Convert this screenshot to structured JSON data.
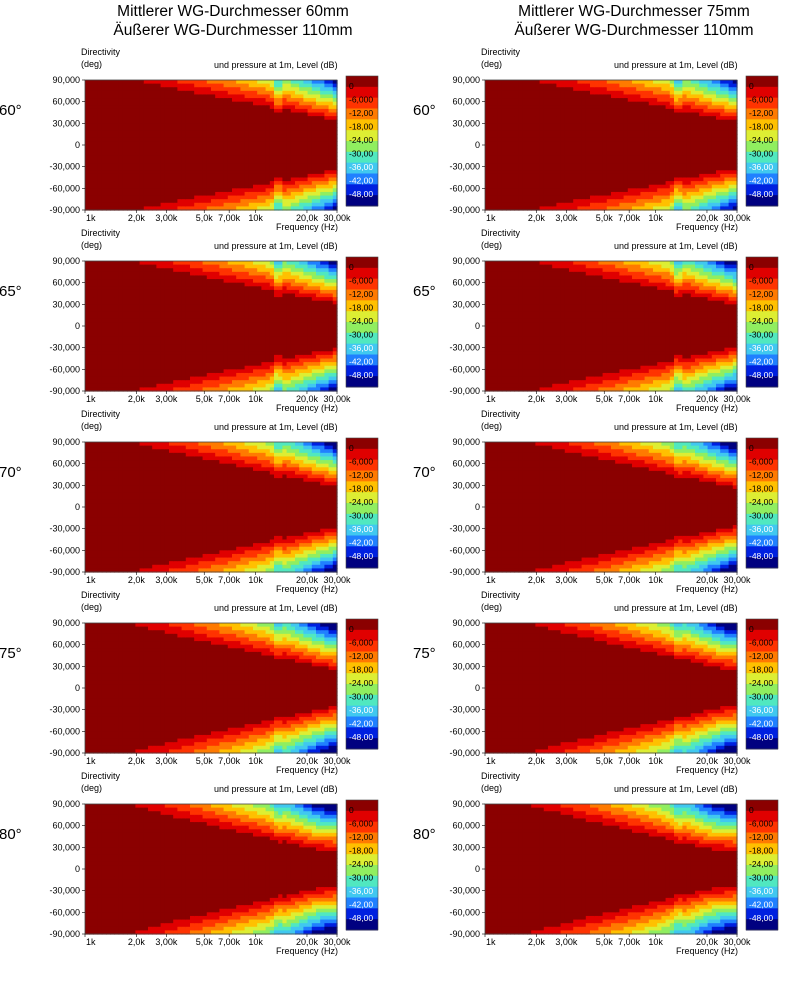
{
  "columns": [
    {
      "title_line1": "Mittlerer WG-Durchmesser 60mm",
      "title_line2": "Äußerer WG-Durchmesser 110mm",
      "variant": 0
    },
    {
      "title_line1": "Mittlerer WG-Durchmesser 75mm",
      "title_line2": "Äußerer WG-Durchmesser 110mm",
      "variant": 1
    }
  ],
  "rows": [
    {
      "angle_label": "60°",
      "angle": 60
    },
    {
      "angle_label": "65°",
      "angle": 65
    },
    {
      "angle_label": "70°",
      "angle": 70
    },
    {
      "angle_label": "75°",
      "angle": 75
    },
    {
      "angle_label": "80°",
      "angle": 80
    }
  ],
  "chart_data": {
    "type": "heatmap",
    "ylabel_line1": "Directivity",
    "ylabel_line2": "(deg)",
    "value_label": "und pressure at 1m, Level  (dB)",
    "xlabel": "Frequency  (Hz)",
    "x_scale": "log",
    "xlim": [
      1000,
      30000
    ],
    "ylim": [
      -90,
      90
    ],
    "x_ticks": [
      1000,
      2000,
      3000,
      5000,
      7000,
      10000,
      20000,
      30000
    ],
    "x_tick_labels": [
      "1k",
      "2,0k",
      "3,00k",
      "5,0k",
      "7,00k",
      "10k",
      "20,0k",
      "30,00k"
    ],
    "y_ticks": [
      90,
      60,
      30,
      0,
      -30,
      -60,
      -90
    ],
    "y_tick_labels": [
      "90,000",
      "60,000",
      "30,000",
      "0",
      "-30,000",
      "-60,000",
      "-90,000"
    ],
    "colorbar_levels": [
      "0",
      "-6,000",
      "-12,00",
      "-18,00",
      "-24,00",
      "-30,00",
      "-36,00",
      "-42,00",
      "-48,00"
    ],
    "colorbar_colors": [
      "#8b0000",
      "#e00000",
      "#ff3300",
      "#ff7a00",
      "#ffc000",
      "#ddee33",
      "#90ee60",
      "#50e8c0",
      "#40c8f0",
      "#2080ff",
      "#0020e0",
      "#000080"
    ]
  }
}
